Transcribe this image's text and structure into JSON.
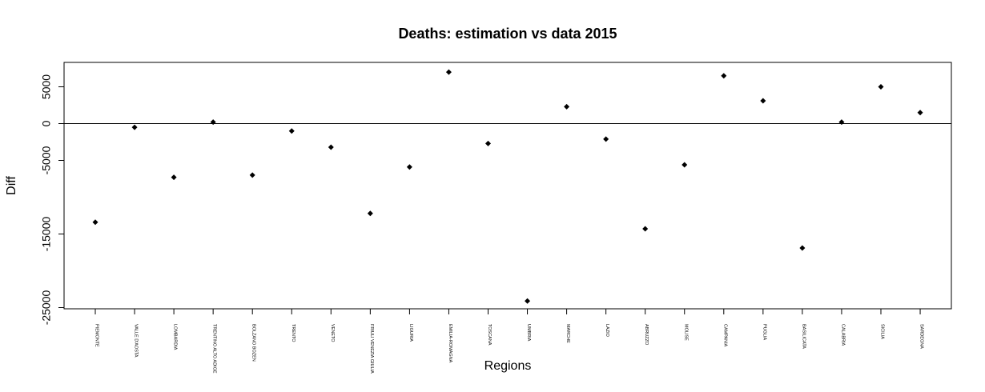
{
  "chart_data": {
    "type": "scatter",
    "title": "Deaths: estimation vs data 2015",
    "xlabel": "Regions",
    "ylabel": "Diff",
    "ylim": [
      -25000,
      8000
    ],
    "y_ticks": [
      5000,
      0,
      -5000,
      -15000,
      -25000
    ],
    "y_tick_labels": [
      "5000",
      "0",
      "-5000",
      "-15000",
      "-25000"
    ],
    "reference_line": 0,
    "grid": false,
    "marker": "filled-diamond",
    "marker_color": "#000000",
    "categories": [
      "PIEMONTE",
      "VALLE D'AOSTA",
      "LOMBARDIA",
      "TRENTINO ALTO ADIGE",
      "BOLZANO BOZEN",
      "TRENTO",
      "VENETO",
      "FRIULI VENEZIA GIULIA",
      "LIGURIA",
      "EMILIA-ROMAGNA",
      "TOSCANA",
      "UMBRIA",
      "MARCHE",
      "LAZIO",
      "ABRUZZO",
      "MOLISE",
      "CAMPANIA",
      "PUGLIA",
      "BASILICATA",
      "CALABRIA",
      "SICILIA",
      "SARDEGNA"
    ],
    "values": [
      -13400,
      -500,
      -7300,
      200,
      -7000,
      -1000,
      -3200,
      -12200,
      -5900,
      7000,
      -2700,
      -24100,
      2300,
      -2100,
      -14300,
      -5600,
      6500,
      3100,
      -16900,
      200,
      5000,
      1500
    ]
  }
}
